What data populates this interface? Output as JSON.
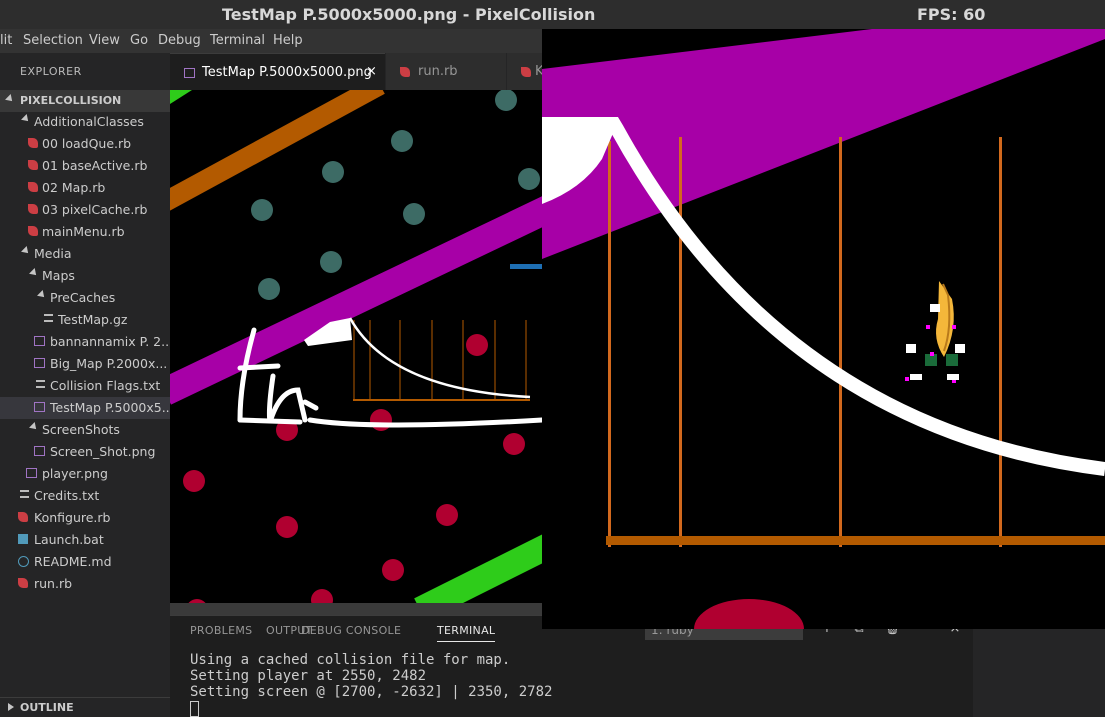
{
  "window": {
    "title": "TestMap P.5000x5000.png - PixelCollision",
    "fps": "FPS: 60"
  },
  "menu": [
    "lit",
    "Selection",
    "View",
    "Go",
    "Debug",
    "Terminal",
    "Help"
  ],
  "explorer": {
    "title": "EXPLORER",
    "project": "PIXELCOLLISION",
    "items": [
      {
        "label": "AdditionalClasses"
      },
      {
        "label": "00 loadQue.rb"
      },
      {
        "label": "01 baseActive.rb"
      },
      {
        "label": "02 Map.rb"
      },
      {
        "label": "03 pixelCache.rb"
      },
      {
        "label": "mainMenu.rb"
      },
      {
        "label": "Media"
      },
      {
        "label": "Maps"
      },
      {
        "label": "PreCaches"
      },
      {
        "label": "TestMap.gz"
      },
      {
        "label": "bannannamix P. 2..."
      },
      {
        "label": "Big_Map P.2000x..."
      },
      {
        "label": "Collision Flags.txt"
      },
      {
        "label": "TestMap P.5000x5..."
      },
      {
        "label": "ScreenShots"
      },
      {
        "label": "Screen_Shot.png"
      },
      {
        "label": "player.png"
      },
      {
        "label": "Credits.txt"
      },
      {
        "label": "Konfigure.rb"
      },
      {
        "label": "Launch.bat"
      },
      {
        "label": "README.md"
      },
      {
        "label": "run.rb"
      }
    ],
    "outline": "OUTLINE"
  },
  "tabs": [
    {
      "label": "TestMap P.5000x5000.png",
      "close": "×"
    },
    {
      "label": "run.rb"
    },
    {
      "label": "K"
    }
  ],
  "panel": {
    "tabs": [
      "PROBLEMS",
      "OUTPUT",
      "DEBUG CONSOLE",
      "TERMINAL"
    ],
    "terminal_select": "1: ruby",
    "terminal_lines": [
      "Using a cached collision file for map.",
      "Setting player at 2550, 2482",
      "Setting screen @ [2700, -2632] | 2350, 2782"
    ],
    "buttons": [
      "+",
      "⧉",
      "🗑",
      "^",
      "×"
    ]
  },
  "colors": {
    "magenta": "#a700a7",
    "orange": "#b35a00",
    "green": "#2ecc1a",
    "teal": "#3d6b65",
    "crimson": "#b00030",
    "white": "#ffffff",
    "ruby": "#cc3e44"
  }
}
